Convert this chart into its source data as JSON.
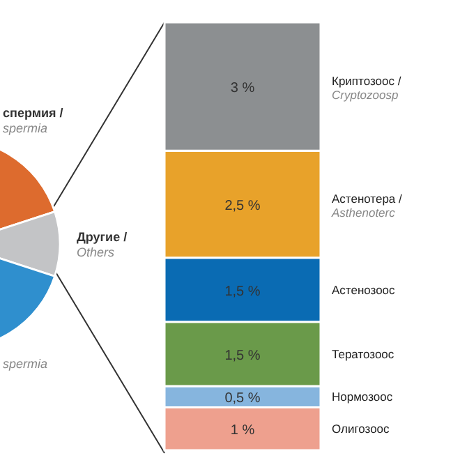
{
  "chart_data": [
    {
      "type": "pie",
      "categories": [
        "спермия / spermia",
        "Другие / Others",
        "spermia"
      ],
      "values": [
        45,
        10,
        45
      ],
      "colors": [
        "#dd6b2e",
        "#c3c4c6",
        "#2f8fce"
      ]
    },
    {
      "type": "bar",
      "stacked": true,
      "categories": [
        null
      ],
      "series": [
        {
          "name": "Олигозоос",
          "color": "#eea08e",
          "values": [
            1
          ],
          "value_labels": [
            "1 %"
          ]
        },
        {
          "name": "Нормозоос",
          "color": "#86b5de",
          "values": [
            0.5
          ],
          "value_labels": [
            "0,5 %"
          ]
        },
        {
          "name": "Тератозоос",
          "color": "#6a9a4a",
          "values": [
            1.5
          ],
          "value_labels": [
            "1,5 %"
          ]
        },
        {
          "name": "Астенозоос",
          "color": "#0a6bb3",
          "values": [
            1.5
          ],
          "value_labels": [
            "1,5 %"
          ]
        },
        {
          "name": "Астенотера / Asthenoterc",
          "color": "#e8a22a",
          "values": [
            2.5
          ],
          "value_labels": [
            "2,5 %"
          ]
        },
        {
          "name": "Криптозоос / Cryptozoosp",
          "color": "#8c8f91",
          "values": [
            3
          ],
          "value_labels": [
            "3 %"
          ]
        }
      ]
    }
  ]
}
